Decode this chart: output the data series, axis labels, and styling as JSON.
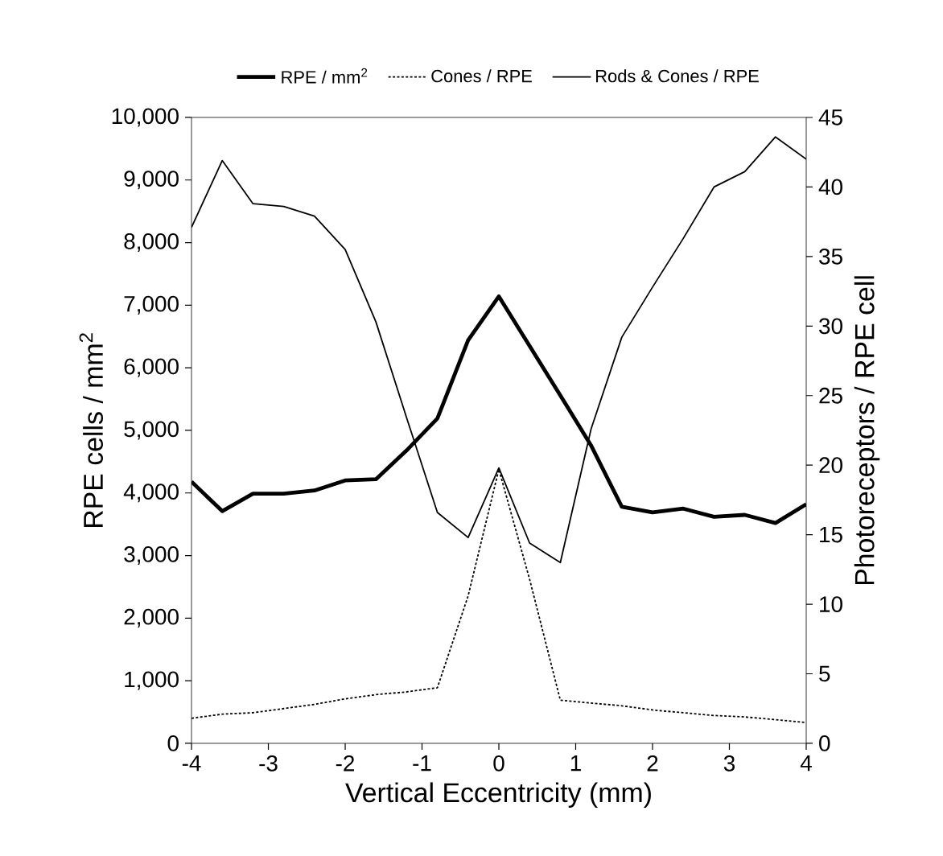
{
  "chart_data": {
    "type": "line",
    "xlabel": "Vertical Eccentricity (mm)",
    "ylabel": "RPE cells / mm$^{2}$",
    "y2label": "Photoreceptors / RPE cell",
    "x": [
      -4,
      -3.6,
      -3.2,
      -2.8,
      -2.4,
      -2.0,
      -1.6,
      -1.2,
      -0.8,
      -0.4,
      0,
      0.4,
      0.8,
      1.2,
      1.6,
      2.0,
      2.4,
      2.8,
      3.2,
      3.6,
      4
    ],
    "series": [
      {
        "name": "RPE / mm$^{2}$",
        "color": "#000000",
        "line_style": "solid",
        "values": [
          4180,
          3710,
          3990,
          3990,
          4040,
          4200,
          4220,
          4680,
          5190,
          6440,
          7140,
          6350,
          5560,
          4760,
          3780,
          3690,
          3750,
          3620,
          3650,
          3520,
          3820
        ]
      },
      {
        "name": "Cones / RPE",
        "color": "#000000",
        "line_style": "dotted",
        "axis": "y2",
        "values": [
          1.8,
          2.1,
          2.2,
          2.5,
          2.8,
          3.2,
          3.5,
          3.7,
          4.0,
          10.6,
          19.7,
          11.8,
          3.1,
          2.9,
          2.7,
          2.4,
          2.2,
          2.0,
          1.9,
          1.7,
          1.5
        ]
      },
      {
        "name": "Rods & Cones / RPE",
        "color": "#000000",
        "line_style": "solid",
        "axis": "y2",
        "values": [
          37.1,
          41.9,
          38.8,
          38.6,
          37.9,
          35.5,
          30.3,
          23.4,
          16.6,
          14.8,
          19.8,
          14.4,
          13.0,
          22.6,
          29.2,
          32.8,
          36.3,
          40.0,
          41.1,
          43.6,
          42.0
        ]
      }
    ],
    "xlim": [
      -4,
      4
    ],
    "xticks": [
      -4,
      -3,
      -2,
      -1,
      0,
      1,
      2,
      3,
      4
    ],
    "ylim": [
      0,
      10000
    ],
    "yticks": [
      0,
      {
        "value": 1000,
        "label": "1,000"
      },
      {
        "value": 2000,
        "label": "2,000"
      },
      {
        "value": 3000,
        "label": "3,000"
      },
      {
        "value": 4000,
        "label": "4,000"
      },
      {
        "value": 5000,
        "label": "5,000"
      },
      {
        "value": 6000,
        "label": "6,000"
      },
      {
        "value": 7000,
        "label": "7,000"
      },
      {
        "value": 8000,
        "label": "8,000"
      },
      {
        "value": 9000,
        "label": "9,000"
      },
      {
        "value": 10000,
        "label": "10,000"
      }
    ],
    "y2lim": [
      0,
      45
    ],
    "y2ticks": [
      0,
      5,
      10,
      15,
      20,
      25,
      30,
      35,
      40,
      45
    ],
    "grid": false,
    "legend": "top",
    "marker": "none"
  }
}
